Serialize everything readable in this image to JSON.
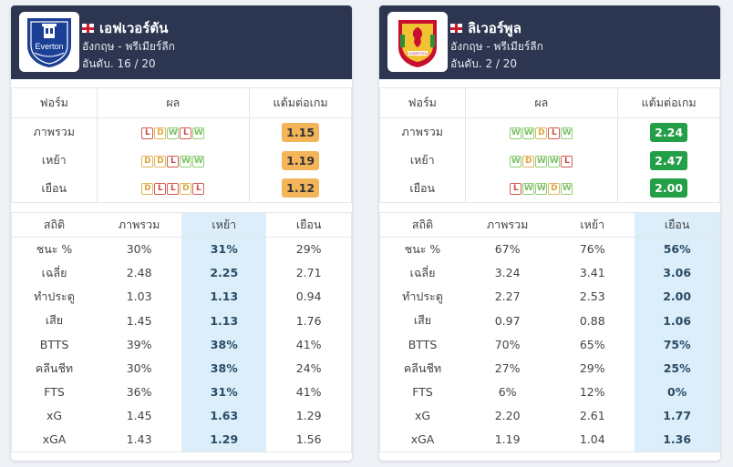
{
  "colors": {
    "header_bg": "#2c3650",
    "highlight_col": "#dbeefa",
    "win": "#8fcf74",
    "draw": "#e3b45a",
    "loss": "#d55b55",
    "ppg_orange": "#f4b55a",
    "ppg_green": "#23a047"
  },
  "teams": [
    {
      "name": "เอฟเวอร์ตัน",
      "league": "อังกฤษ - พรีเมียร์ลีก",
      "rank": "อันดับ. 16 / 20",
      "crest_icon": "everton-crest-icon",
      "crest_text": "Everton",
      "form_headers": [
        "ฟอร์ม",
        "ผล",
        "แต้มต่อเกม"
      ],
      "form_rows": [
        {
          "label": "ภาพรวม",
          "results": [
            "L",
            "D",
            "W",
            "L",
            "W"
          ],
          "ppg": "1.15",
          "ppg_color": "orange"
        },
        {
          "label": "เหย้า",
          "results": [
            "D",
            "D",
            "L",
            "W",
            "W"
          ],
          "ppg": "1.19",
          "ppg_color": "orange"
        },
        {
          "label": "เยือน",
          "results": [
            "D",
            "L",
            "L",
            "D",
            "L"
          ],
          "ppg": "1.12",
          "ppg_color": "orange"
        }
      ],
      "stats_headers": [
        "สถิติ",
        "ภาพรวม",
        "เหย้า",
        "เยือน"
      ],
      "highlight_col": 2,
      "stats_rows": [
        [
          "ชนะ %",
          "30%",
          "31%",
          "29%"
        ],
        [
          "เฉลี่ย",
          "2.48",
          "2.25",
          "2.71"
        ],
        [
          "ทำประตู",
          "1.03",
          "1.13",
          "0.94"
        ],
        [
          "เสีย",
          "1.45",
          "1.13",
          "1.76"
        ],
        [
          "BTTS",
          "39%",
          "38%",
          "41%"
        ],
        [
          "คลีนชีท",
          "30%",
          "38%",
          "24%"
        ],
        [
          "FTS",
          "36%",
          "31%",
          "41%"
        ],
        [
          "xG",
          "1.45",
          "1.63",
          "1.29"
        ],
        [
          "xGA",
          "1.43",
          "1.29",
          "1.56"
        ]
      ]
    },
    {
      "name": "ลิเวอร์พูล",
      "league": "อังกฤษ - พรีเมียร์ลีก",
      "rank": "อันดับ. 2 / 20",
      "crest_icon": "liverpool-crest-icon",
      "crest_text": "LIVERPOOL",
      "form_headers": [
        "ฟอร์ม",
        "ผล",
        "แต้มต่อเกม"
      ],
      "form_rows": [
        {
          "label": "ภาพรวม",
          "results": [
            "W",
            "W",
            "D",
            "L",
            "W"
          ],
          "ppg": "2.24",
          "ppg_color": "green"
        },
        {
          "label": "เหย้า",
          "results": [
            "W",
            "D",
            "W",
            "W",
            "L"
          ],
          "ppg": "2.47",
          "ppg_color": "green"
        },
        {
          "label": "เยือน",
          "results": [
            "L",
            "W",
            "W",
            "D",
            "W"
          ],
          "ppg": "2.00",
          "ppg_color": "green"
        }
      ],
      "stats_headers": [
        "สถิติ",
        "ภาพรวม",
        "เหย้า",
        "เยือน"
      ],
      "highlight_col": 3,
      "stats_rows": [
        [
          "ชนะ %",
          "67%",
          "76%",
          "56%"
        ],
        [
          "เฉลี่ย",
          "3.24",
          "3.41",
          "3.06"
        ],
        [
          "ทำประตู",
          "2.27",
          "2.53",
          "2.00"
        ],
        [
          "เสีย",
          "0.97",
          "0.88",
          "1.06"
        ],
        [
          "BTTS",
          "70%",
          "65%",
          "75%"
        ],
        [
          "คลีนชีท",
          "27%",
          "29%",
          "25%"
        ],
        [
          "FTS",
          "6%",
          "12%",
          "0%"
        ],
        [
          "xG",
          "2.20",
          "2.61",
          "1.77"
        ],
        [
          "xGA",
          "1.19",
          "1.04",
          "1.36"
        ]
      ]
    }
  ]
}
